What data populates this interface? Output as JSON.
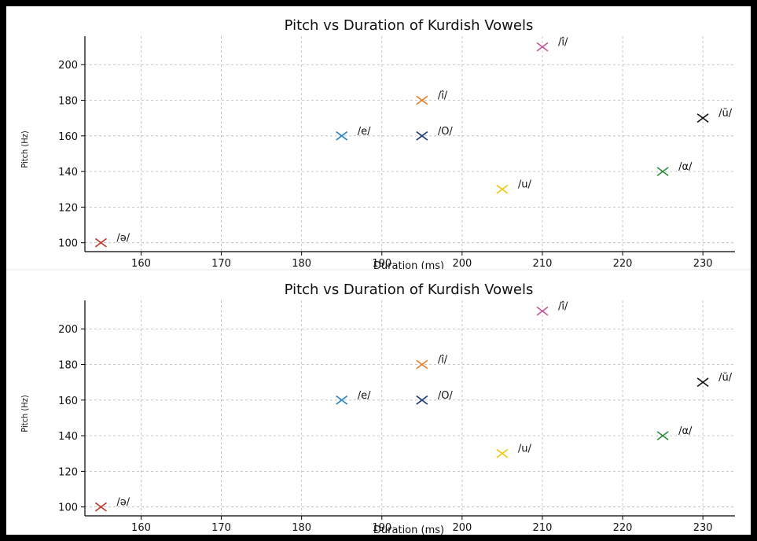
{
  "chart_data": [
    {
      "type": "scatter",
      "title": "Pitch vs Duration of Kurdish Vowels",
      "xlabel": "Duration (ms)",
      "ylabel": "Pitch (Hz)",
      "xticks": [
        160,
        170,
        180,
        190,
        200,
        210,
        220,
        230
      ],
      "yticks": [
        100,
        120,
        140,
        160,
        180,
        200
      ],
      "xlim": [
        153,
        234
      ],
      "ylim": [
        95,
        216
      ],
      "grid": true,
      "marker": "x",
      "points": [
        {
          "label": "/ə/",
          "x": 155,
          "y": 100,
          "color": "#c0392b"
        },
        {
          "label": "/e/",
          "x": 185,
          "y": 160,
          "color": "#2e86c1"
        },
        {
          "label": "/î/",
          "x": 195,
          "y": 180,
          "color": "#e67e22"
        },
        {
          "label": "/O/",
          "x": 195,
          "y": 160,
          "color": "#1f3a7a"
        },
        {
          "label": "/u/",
          "x": 205,
          "y": 130,
          "color": "#f1c40f"
        },
        {
          "label": "/î/",
          "x": 210,
          "y": 210,
          "color": "#c2569b"
        },
        {
          "label": "/α/",
          "x": 225,
          "y": 140,
          "color": "#2e8b3e"
        },
        {
          "label": "/ŭ/",
          "x": 230,
          "y": 170,
          "color": "#111111"
        }
      ]
    },
    {
      "type": "scatter",
      "title": "Pitch vs Duration of Kurdish Vowels",
      "xlabel": "Duration (ms)",
      "ylabel": "Pitch (Hz)",
      "xticks": [
        160,
        170,
        180,
        190,
        200,
        210,
        220,
        230
      ],
      "yticks": [
        100,
        120,
        140,
        160,
        180,
        200
      ],
      "xlim": [
        153,
        234
      ],
      "ylim": [
        95,
        216
      ],
      "grid": true,
      "marker": "x",
      "points": [
        {
          "label": "/ə/",
          "x": 155,
          "y": 100,
          "color": "#c0392b"
        },
        {
          "label": "/e/",
          "x": 185,
          "y": 160,
          "color": "#2e86c1"
        },
        {
          "label": "/î/",
          "x": 195,
          "y": 180,
          "color": "#e67e22"
        },
        {
          "label": "/O/",
          "x": 195,
          "y": 160,
          "color": "#1f3a7a"
        },
        {
          "label": "/u/",
          "x": 205,
          "y": 130,
          "color": "#f1c40f"
        },
        {
          "label": "/î/",
          "x": 210,
          "y": 210,
          "color": "#c2569b"
        },
        {
          "label": "/α/",
          "x": 225,
          "y": 140,
          "color": "#2e8b3e"
        },
        {
          "label": "/ŭ/",
          "x": 230,
          "y": 170,
          "color": "#111111"
        }
      ]
    }
  ]
}
